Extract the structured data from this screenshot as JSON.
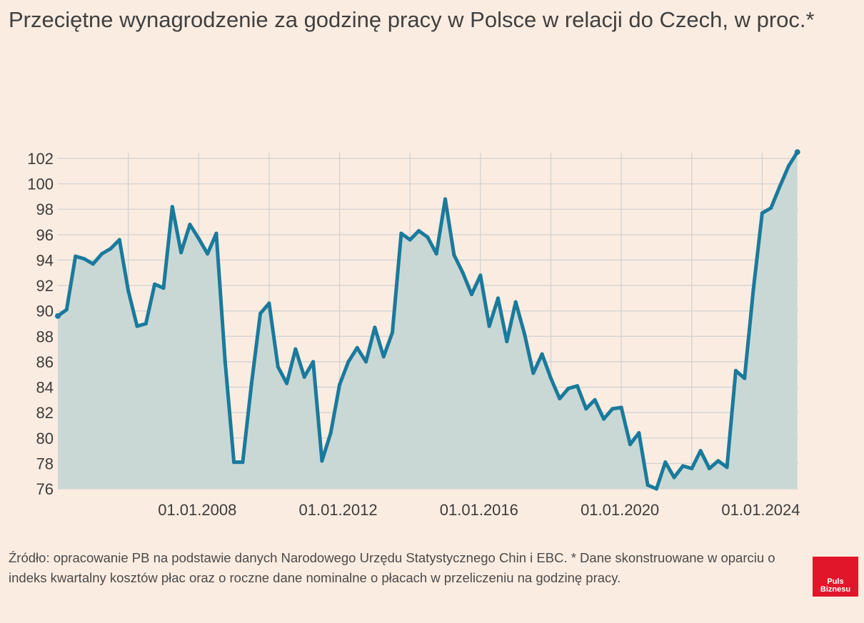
{
  "header": {
    "title": "Przeciętne wynagrodzenie za godzinę pracy w Polsce w relacji do Czech, w proc.*"
  },
  "footer": {
    "source": "Źródło: opracowanie PB na podstawie danych Narodowego Urzędu Statystycznego Chin i EBC. * Dane skonstruowane w oparciu o indeks kwartalny kosztów płac oraz o roczne dane nominalne o płacach w przeliczeniu na godzinę pracy.",
    "logo_line1": "Puls",
    "logo_line2": "Biznesu"
  },
  "colors": {
    "background": "#fbece1",
    "line": "#1a7a9c",
    "area": "#c9d8d5",
    "grid": "#d2d2d2",
    "logo": "#e2162a"
  },
  "chart_data": {
    "type": "area",
    "title": "Przeciętne wynagrodzenie za godzinę pracy w Polsce w relacji do Czech, w proc.*",
    "xlabel": "",
    "ylabel": "",
    "x_start": "2004-01",
    "x_step": "quarter",
    "ylim": [
      76,
      102
    ],
    "yticks": [
      76,
      78,
      80,
      82,
      84,
      86,
      88,
      90,
      92,
      94,
      96,
      98,
      100,
      102
    ],
    "xticks": [
      "01.01.2008",
      "01.01.2012",
      "01.01.2016",
      "01.01.2020",
      "01.01.2024"
    ],
    "grid": true,
    "series": [
      {
        "values": [
          89.6,
          90.1,
          94.3,
          94.1,
          93.7,
          94.5,
          94.9,
          95.6,
          91.6,
          88.8,
          89.0,
          92.1,
          91.8,
          98.2,
          94.6,
          96.8,
          95.7,
          94.5,
          96.1,
          86.0,
          78.1,
          78.1,
          84.3,
          89.8,
          90.6,
          85.6,
          84.3,
          87.0,
          84.8,
          86.0,
          78.2,
          80.4,
          84.2,
          86.0,
          87.1,
          86.0,
          88.7,
          86.4,
          88.3,
          96.1,
          95.6,
          96.3,
          95.8,
          94.5,
          98.8,
          94.4,
          93.0,
          91.3,
          92.8,
          88.8,
          91.0,
          87.6,
          90.7,
          88.2,
          85.1,
          86.6,
          84.7,
          83.1,
          83.9,
          84.1,
          82.3,
          83.0,
          81.5,
          82.3,
          82.4,
          79.5,
          80.4,
          76.3,
          76.0,
          78.1,
          76.9,
          77.8,
          77.6,
          79.0,
          77.6,
          78.2,
          77.7,
          85.3,
          84.7,
          91.7,
          97.7,
          98.1,
          99.8,
          101.4,
          102.5
        ]
      }
    ]
  }
}
